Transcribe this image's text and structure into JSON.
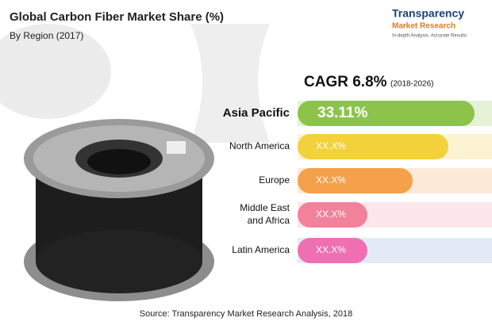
{
  "header": {
    "title": "Global Carbon Fiber Market Share (%)",
    "subtitle": "By Region (2017)"
  },
  "logo": {
    "name": "Transparency",
    "name2": "Market Research",
    "tagline": "In-depth Analysis. Accurate Results"
  },
  "cagr": {
    "label": "CAGR 6.8%",
    "period": "(2018-2026)"
  },
  "rows": [
    {
      "label": "Asia Pacific",
      "value": "33.11%"
    },
    {
      "label": "North America",
      "value": "XX.X%"
    },
    {
      "label": "Europe",
      "value": "XX.X%"
    },
    {
      "label": "Middle East",
      "label2": "and Africa",
      "value": "XX.X%"
    },
    {
      "label": "Latin America",
      "value": "XX.X%"
    }
  ],
  "source": "Source: Transparency Market Research Analysis, 2018"
}
